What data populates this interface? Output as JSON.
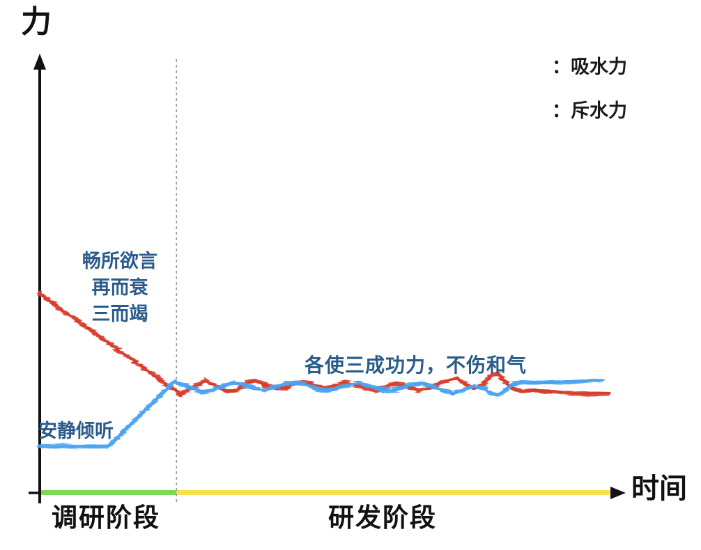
{
  "chart_data": {
    "type": "line",
    "style": "hand-drawn-crayon",
    "title": "",
    "ylabel": "力",
    "xlabel": "时间",
    "xlim": [
      0,
      100
    ],
    "ylim": [
      0,
      100
    ],
    "grid": false,
    "legend_position": "top-right",
    "axis_color": "#111111",
    "divider_x": 24,
    "divider_color": "#9a9a9a",
    "series": [
      {
        "name": "吸水力",
        "color": "#d93a2b",
        "points": [
          [
            0,
            46.3
          ],
          [
            22.4,
            25.1
          ],
          [
            23.8,
            23.9
          ],
          [
            24.6,
            22.7
          ],
          [
            26,
            23.9
          ],
          [
            27.9,
            25.2
          ],
          [
            29.1,
            26.1
          ],
          [
            30.9,
            24.8
          ],
          [
            32.8,
            23.6
          ],
          [
            34.6,
            23.9
          ],
          [
            36.4,
            25.6
          ],
          [
            37.7,
            26.1
          ],
          [
            39.5,
            25.1
          ],
          [
            41.3,
            24.3
          ],
          [
            43.2,
            24.4
          ],
          [
            45,
            25.6
          ],
          [
            46.2,
            25.9
          ],
          [
            48,
            25.1
          ],
          [
            49.9,
            24.3
          ],
          [
            51.7,
            24.9
          ],
          [
            53.5,
            25.7
          ],
          [
            55.4,
            25.2
          ],
          [
            57.2,
            24.3
          ],
          [
            59,
            23.9
          ],
          [
            60.9,
            24.8
          ],
          [
            62.7,
            25.4
          ],
          [
            64.5,
            24.6
          ],
          [
            66.4,
            23.9
          ],
          [
            68.2,
            24.3
          ],
          [
            70,
            25.4
          ],
          [
            71.9,
            26.2
          ],
          [
            73.1,
            26.7
          ],
          [
            74.3,
            25.6
          ],
          [
            76.2,
            24.3
          ],
          [
            78,
            25.6
          ],
          [
            79.2,
            27.2
          ],
          [
            80.4,
            27.5
          ],
          [
            81.7,
            25.9
          ],
          [
            82.9,
            24.3
          ],
          [
            84.7,
            23.6
          ],
          [
            86.6,
            23.9
          ],
          [
            88.4,
            23.6
          ],
          [
            90.8,
            23.5
          ],
          [
            93.3,
            23.3
          ],
          [
            96.3,
            23.1
          ],
          [
            99.8,
            23
          ]
        ]
      },
      {
        "name": "斥水力",
        "color": "#4aa3f2",
        "points": [
          [
            0,
            10.8
          ],
          [
            12,
            10.8
          ],
          [
            23.6,
            25.9
          ],
          [
            25.1,
            25.2
          ],
          [
            26.7,
            24.3
          ],
          [
            28.5,
            23.5
          ],
          [
            30.3,
            23.9
          ],
          [
            32.2,
            24.9
          ],
          [
            34,
            25.6
          ],
          [
            35.8,
            25.1
          ],
          [
            37.7,
            24.3
          ],
          [
            39.5,
            23.9
          ],
          [
            41.3,
            24.6
          ],
          [
            43.2,
            25.4
          ],
          [
            45,
            25.7
          ],
          [
            46.8,
            25.1
          ],
          [
            48.7,
            24.1
          ],
          [
            50.5,
            23.8
          ],
          [
            52.3,
            24.4
          ],
          [
            54.2,
            25.2
          ],
          [
            56,
            25.6
          ],
          [
            57.8,
            24.9
          ],
          [
            59.7,
            24.1
          ],
          [
            61.5,
            23.8
          ],
          [
            63.3,
            24.4
          ],
          [
            65.2,
            25.1
          ],
          [
            67,
            25.6
          ],
          [
            68.8,
            24.8
          ],
          [
            70.7,
            23.8
          ],
          [
            72.5,
            23.1
          ],
          [
            74.3,
            23.9
          ],
          [
            76.2,
            24.9
          ],
          [
            78,
            24.3
          ],
          [
            79.2,
            23.1
          ],
          [
            80.4,
            22.7
          ],
          [
            81.7,
            23.9
          ],
          [
            82.9,
            25.2
          ],
          [
            84.7,
            25.7
          ],
          [
            86.6,
            25.4
          ],
          [
            88.4,
            25.6
          ],
          [
            90.8,
            25.7
          ],
          [
            93.3,
            25.9
          ],
          [
            96.3,
            26.1
          ],
          [
            98.8,
            26.2
          ]
        ]
      }
    ],
    "legend": [
      {
        "label": "：吸水力",
        "swatch_color": "#d93a2b"
      },
      {
        "label": "：斥水力",
        "swatch_color": "#3d7ec6"
      }
    ],
    "annotations": [
      {
        "id": "speak",
        "lines": [
          "畅所欲言",
          "再而衰",
          "三而竭"
        ],
        "color": "#2b5b8a"
      },
      {
        "id": "listen",
        "text": "安静倾听",
        "color": "#2b5b8a"
      },
      {
        "id": "balance",
        "text": "各使三成功力，不伤和气",
        "color": "#2b5b8a"
      }
    ],
    "phases": [
      {
        "label": "调研阶段",
        "bar_color": "#7ed957",
        "x0": 0,
        "x1": 24
      },
      {
        "label": "研发阶段",
        "bar_color": "#f6e04e",
        "x0": 24,
        "x1": 100
      }
    ]
  }
}
